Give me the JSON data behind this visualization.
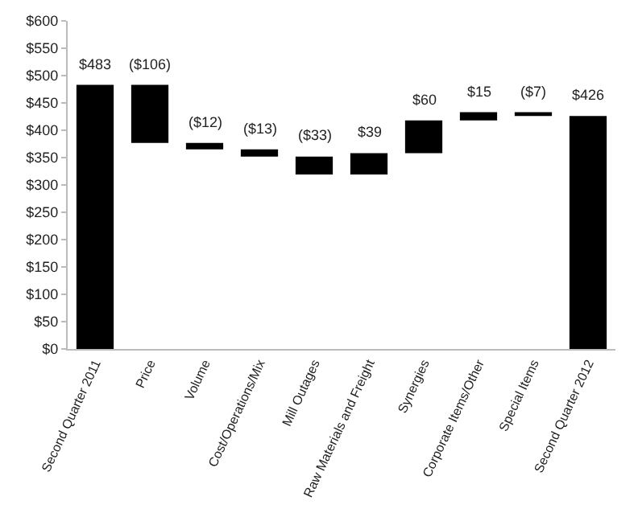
{
  "chart_data": {
    "type": "bar",
    "categories": [
      "Second Quarter 2011",
      "Price",
      "Volume",
      "Cost/Operations/Mix",
      "Mill Outages",
      "Raw Materials and Freight",
      "Synergies",
      "Corporate Items/Other",
      "Special Items",
      "Second Quarter 2012"
    ],
    "values": [
      483,
      -106,
      -12,
      -13,
      -33,
      39,
      60,
      15,
      -7,
      426
    ],
    "base": [
      0,
      483,
      377,
      365,
      352,
      319,
      358,
      418,
      433,
      0
    ],
    "value_labels": [
      "$483",
      "($106)",
      "($12)",
      "($13)",
      "($33)",
      "$39",
      "$60",
      "$15",
      "($7)",
      "$426"
    ],
    "color": "#000000",
    "ylim": [
      0,
      600
    ],
    "yticks": [
      {
        "value": 0,
        "label": "$0"
      },
      {
        "value": 50,
        "label": "$50"
      },
      {
        "value": 100,
        "label": "$100"
      },
      {
        "value": 150,
        "label": "$150"
      },
      {
        "value": 200,
        "label": "$200"
      },
      {
        "value": 250,
        "label": "$250"
      },
      {
        "value": 300,
        "label": "$300"
      },
      {
        "value": 350,
        "label": "$350"
      },
      {
        "value": 400,
        "label": "$400"
      },
      {
        "value": 450,
        "label": "$450"
      },
      {
        "value": 500,
        "label": "$500"
      },
      {
        "value": 550,
        "label": "$550"
      },
      {
        "value": 600,
        "label": "$600"
      }
    ],
    "grid": false
  }
}
